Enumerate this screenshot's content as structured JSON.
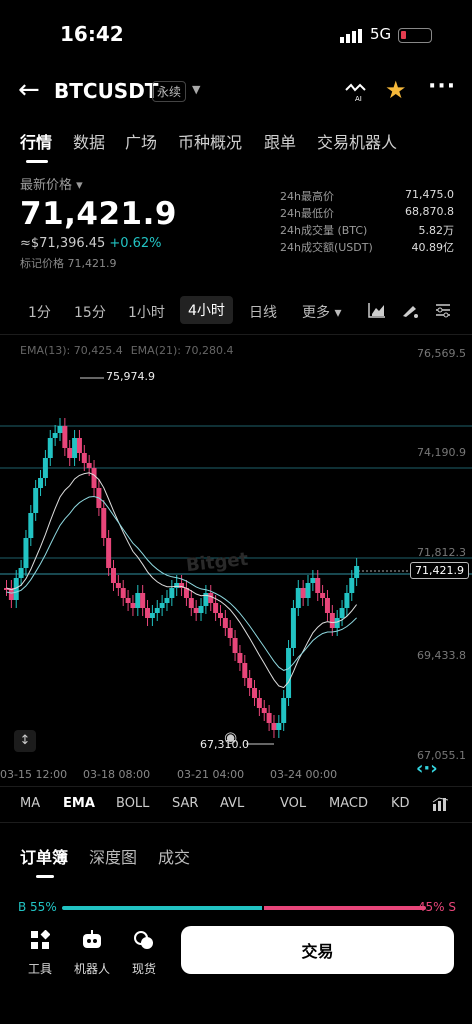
{
  "status": {
    "time": "16:42",
    "network": "5G"
  },
  "nav": {
    "symbol": "BTCUSDT",
    "contract_type": "永续"
  },
  "tabs": [
    "行情",
    "数据",
    "广场",
    "币种概况",
    "跟单",
    "交易机器人"
  ],
  "price": {
    "label": "最新价格",
    "last": "71,421.9",
    "usd": "≈$71,396.45",
    "change": "+0.62%",
    "mark_label": "标记价格",
    "mark_value": "71,421.9"
  },
  "stats": [
    {
      "k": "24h最高价",
      "v": "71,475.0"
    },
    {
      "k": "24h最低价",
      "v": "68,870.8"
    },
    {
      "k": "24h成交量 (BTC)",
      "v": "5.82万"
    },
    {
      "k": "24h成交额(USDT)",
      "v": "40.89亿"
    }
  ],
  "intervals": [
    "1分",
    "15分",
    "1小时",
    "4小时",
    "日线",
    "更多"
  ],
  "ema": {
    "ema13": "EMA(13): 70,425.4",
    "ema21": "EMA(21): 70,280.4"
  },
  "y_ticks": [
    "76,569.5",
    "74,190.9",
    "71,812.3",
    "69,433.8",
    "67,055.1"
  ],
  "x_ticks": [
    "03-15 12:00",
    "03-18 08:00",
    "03-21 04:00",
    "03-24 00:00"
  ],
  "annotations": {
    "high": "75,974.9",
    "low": "67,310.0",
    "current": "71,421.9"
  },
  "watermark": "Bitget",
  "indicators": [
    "MA",
    "EMA",
    "BOLL",
    "SAR",
    "AVL",
    "VOL",
    "MACD",
    "KD"
  ],
  "sections": [
    "订单簿",
    "深度图",
    "成交"
  ],
  "ratio": {
    "buy": "B 55%",
    "sell": "45% S",
    "buy_pct": 55
  },
  "bottom": {
    "tools": "工具",
    "bots": "机器人",
    "spot": "现货",
    "trade": "交易"
  },
  "colors": {
    "up": "#22c3c3",
    "down": "#e8467a"
  }
}
